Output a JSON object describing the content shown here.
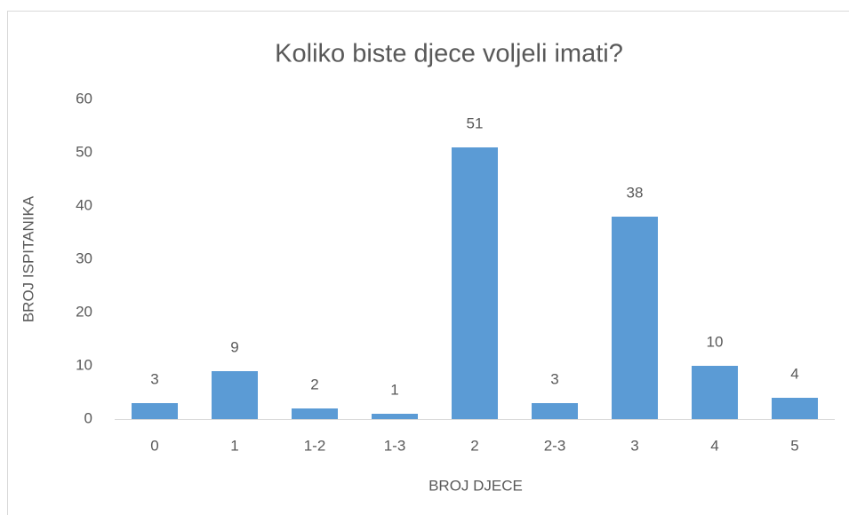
{
  "chart_data": {
    "type": "bar",
    "title": "Koliko biste djece voljeli imati?",
    "x_label": "BROJ DJECE",
    "y_label": "BROJ ISPITANIKA",
    "categories": [
      "0",
      "1",
      "1-2",
      "1-3",
      "2",
      "2-3",
      "3",
      "4",
      "5"
    ],
    "values": [
      3,
      9,
      2,
      1,
      51,
      3,
      38,
      10,
      4
    ],
    "color": "#5b9bd5",
    "ylim": [
      0,
      60
    ],
    "yticks": [
      0,
      10,
      20,
      30,
      40,
      50,
      60
    ],
    "grid": false
  }
}
